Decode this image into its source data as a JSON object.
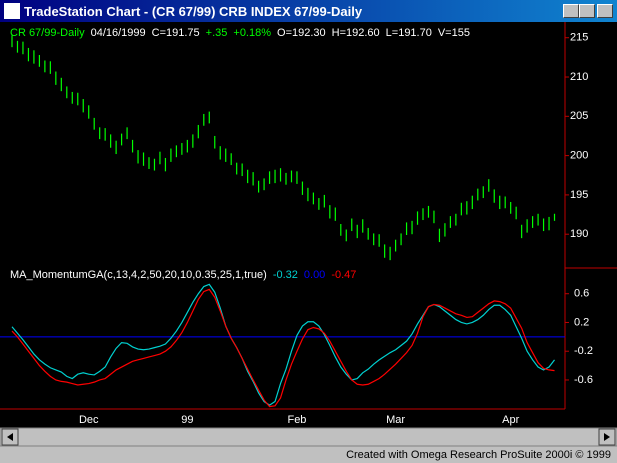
{
  "window": {
    "title": "TradeStation Chart - (CR 67/99) CRB INDEX 67/99-Daily",
    "footer": "Created with Omega Research ProSuite 2000i © 1999"
  },
  "chart_data": [
    {
      "type": "ohlc",
      "header": [
        {
          "text": "CR 67/99-Daily",
          "color": "#00ff00"
        },
        {
          "text": "04/16/1999",
          "color": "#ffffff"
        },
        {
          "text": "C=191.75",
          "color": "#ffffff"
        },
        {
          "text": "+.35",
          "color": "#00ff00"
        },
        {
          "text": "+0.18%",
          "color": "#00ff00"
        },
        {
          "text": "O=192.30",
          "color": "#ffffff"
        },
        {
          "text": "H=192.60",
          "color": "#ffffff"
        },
        {
          "text": "L=191.70",
          "color": "#ffffff"
        },
        {
          "text": "V=155",
          "color": "#ffffff"
        }
      ],
      "color": "#00ff00",
      "high": [
        215.3,
        214.6,
        214.5,
        213.7,
        213.4,
        212.8,
        212.1,
        212,
        210.7,
        209.9,
        208.8,
        208.1,
        208,
        207.2,
        206.4,
        204.8,
        203.6,
        203.5,
        202.7,
        201.9,
        202.8,
        203.6,
        202,
        200.7,
        200.4,
        199.8,
        199.6,
        200.5,
        199.7,
        200.9,
        201.3,
        201.6,
        202,
        202.7,
        203.9,
        205.3,
        205.6,
        202.5,
        201.2,
        200.9,
        200.3,
        199.1,
        199,
        198.2,
        197.9,
        196.8,
        197.1,
        198,
        198.2,
        198.4,
        197.8,
        198.1,
        198,
        196.7,
        195.9,
        195.3,
        194.6,
        195,
        193.7,
        193.4,
        191.3,
        190.6,
        192,
        191.2,
        191.9,
        190.8,
        190.1,
        190,
        188.7,
        188.4,
        189.3,
        190.1,
        191.5,
        191.7,
        192.9,
        193.3,
        193.6,
        193,
        190.7,
        191.4,
        192.3,
        192.6,
        194,
        194.2,
        194.9,
        195.8,
        196.1,
        197,
        195.7,
        194.9,
        194.8,
        194.1,
        193.5,
        191.2,
        191.9,
        192.3,
        192.6,
        192,
        192.2,
        192.6
      ],
      "low": [
        213.8,
        213.1,
        212.9,
        212,
        211.7,
        211.3,
        210.6,
        210.4,
        209,
        208.2,
        207.3,
        206.6,
        206.4,
        205.5,
        204.7,
        203.3,
        202.1,
        201.9,
        201,
        200.2,
        201.3,
        202.1,
        200.4,
        199,
        198.7,
        198.3,
        198.1,
        198.9,
        198,
        199.2,
        199.8,
        200.1,
        200.4,
        201,
        202.2,
        203.8,
        204.1,
        200.9,
        199.5,
        199.2,
        198.8,
        197.6,
        197.4,
        196.5,
        196.2,
        195.3,
        195.6,
        196.4,
        196.5,
        196.7,
        196.3,
        196.6,
        196.4,
        195,
        194.2,
        193.8,
        193.1,
        193.4,
        192,
        191.7,
        189.8,
        189.1,
        190.4,
        189.5,
        190.2,
        189.3,
        188.6,
        188.4,
        187,
        186.7,
        187.8,
        188.6,
        189.9,
        190,
        191.2,
        191.8,
        192.1,
        191.4,
        189,
        189.7,
        190.8,
        191.1,
        192.4,
        192.5,
        193.2,
        194.3,
        194.6,
        195.4,
        194,
        193.2,
        193.3,
        192.6,
        191.9,
        189.5,
        190.2,
        190.8,
        191.1,
        190.4,
        190.5,
        191.7
      ],
      "ylim": [
        185.7,
        217
      ],
      "yticks": [
        190,
        195,
        200,
        205,
        210,
        215
      ],
      "grid": false
    },
    {
      "type": "line",
      "title": "MA_MomentumGA(c,13,4,2,50,20,10,0.35,25,1,true)",
      "categories": [
        null,
        null,
        null,
        null,
        null,
        null,
        null,
        null,
        null,
        null,
        null,
        null,
        null,
        null,
        "Dec",
        null,
        null,
        null,
        null,
        null,
        null,
        null,
        null,
        null,
        null,
        null,
        null,
        null,
        null,
        null,
        null,
        null,
        "99",
        null,
        null,
        null,
        null,
        null,
        null,
        null,
        null,
        null,
        null,
        null,
        null,
        null,
        null,
        null,
        null,
        null,
        null,
        null,
        "Feb",
        null,
        null,
        null,
        null,
        null,
        null,
        null,
        null,
        null,
        null,
        null,
        null,
        null,
        null,
        null,
        null,
        null,
        "Mar",
        null,
        null,
        null,
        null,
        null,
        null,
        null,
        null,
        null,
        null,
        null,
        null,
        null,
        null,
        null,
        null,
        null,
        null,
        null,
        null,
        "Apr",
        null,
        null,
        null,
        null,
        null,
        null,
        null,
        null
      ],
      "series": [
        {
          "color": "#00d0d0",
          "last_label": "-0.32",
          "values": [
            0.14,
            0.05,
            -0.04,
            -0.14,
            -0.24,
            -0.32,
            -0.38,
            -0.43,
            -0.46,
            -0.49,
            -0.55,
            -0.58,
            -0.52,
            -0.5,
            -0.52,
            -0.53,
            -0.48,
            -0.42,
            -0.28,
            -0.16,
            -0.08,
            -0.09,
            -0.14,
            -0.17,
            -0.18,
            -0.17,
            -0.15,
            -0.13,
            -0.1,
            -0.02,
            0.08,
            0.2,
            0.34,
            0.48,
            0.6,
            0.7,
            0.73,
            0.62,
            0.4,
            0.15,
            -0.02,
            -0.15,
            -0.3,
            -0.48,
            -0.62,
            -0.78,
            -0.9,
            -0.95,
            -0.9,
            -0.65,
            -0.45,
            -0.2,
            0.02,
            0.15,
            0.21,
            0.21,
            0.15,
            0.03,
            -0.12,
            -0.28,
            -0.42,
            -0.52,
            -0.6,
            -0.58,
            -0.5,
            -0.45,
            -0.38,
            -0.32,
            -0.27,
            -0.22,
            -0.18,
            -0.12,
            -0.06,
            0.04,
            0.18,
            0.3,
            0.42,
            0.45,
            0.42,
            0.36,
            0.3,
            0.24,
            0.2,
            0.18,
            0.2,
            0.24,
            0.3,
            0.38,
            0.44,
            0.44,
            0.38,
            0.3,
            0.14,
            -0.02,
            -0.2,
            -0.32,
            -0.42,
            -0.46,
            -0.42,
            -0.32
          ]
        },
        {
          "color": "#ff0000",
          "last_label": "-0.47",
          "values": [
            0.08,
            0,
            -0.1,
            -0.2,
            -0.3,
            -0.4,
            -0.48,
            -0.55,
            -0.6,
            -0.62,
            -0.63,
            -0.65,
            -0.67,
            -0.66,
            -0.65,
            -0.63,
            -0.6,
            -0.58,
            -0.52,
            -0.46,
            -0.42,
            -0.38,
            -0.34,
            -0.32,
            -0.3,
            -0.28,
            -0.26,
            -0.24,
            -0.2,
            -0.14,
            -0.05,
            0.06,
            0.2,
            0.36,
            0.52,
            0.63,
            0.66,
            0.55,
            0.36,
            0.15,
            -0.02,
            -0.15,
            -0.3,
            -0.45,
            -0.6,
            -0.74,
            -0.88,
            -0.97,
            -0.96,
            -0.85,
            -0.6,
            -0.38,
            -0.2,
            -0.03,
            0.1,
            0.13,
            0.11,
            0.05,
            -0.06,
            -0.2,
            -0.34,
            -0.48,
            -0.6,
            -0.66,
            -0.67,
            -0.66,
            -0.62,
            -0.58,
            -0.52,
            -0.45,
            -0.38,
            -0.3,
            -0.22,
            -0.12,
            0.05,
            0.28,
            0.42,
            0.45,
            0.44,
            0.4,
            0.36,
            0.32,
            0.3,
            0.27,
            0.28,
            0.34,
            0.4,
            0.46,
            0.5,
            0.49,
            0.46,
            0.4,
            0.26,
            0.12,
            -0.08,
            -0.22,
            -0.36,
            -0.44,
            -0.46,
            -0.47
          ]
        }
      ],
      "hline": {
        "value": 0,
        "label": "0.00",
        "color": "#0000ff"
      },
      "ylim": [
        -0.99,
        0.93
      ],
      "yticks": [
        0.6,
        0.2,
        -0.2,
        -0.6
      ],
      "grid": false
    }
  ]
}
